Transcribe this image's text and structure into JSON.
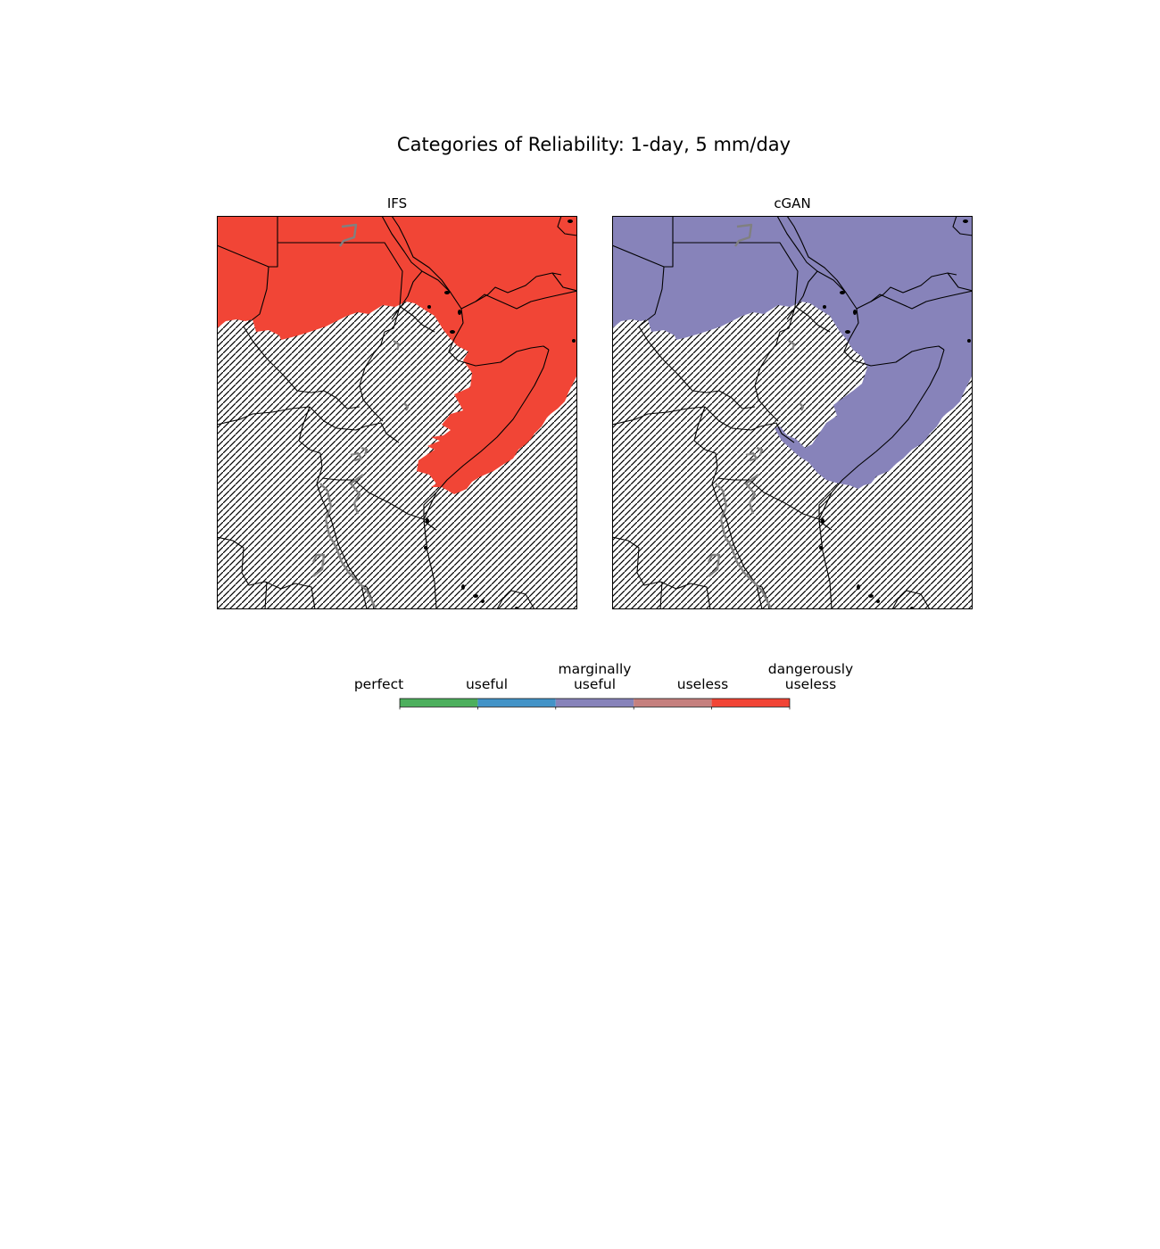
{
  "figure": {
    "title": "Categories of Reliability: 1-day, 5 mm/day"
  },
  "panels": [
    {
      "title": "IFS",
      "fill_category": "dangerously useless",
      "fill_color": "#f14536"
    },
    {
      "title": "cGAN",
      "fill_category": "marginally useful",
      "fill_color": "#8783ba"
    }
  ],
  "legend": {
    "categories": [
      {
        "line1": "",
        "line2": "perfect",
        "color": "#4daf5d"
      },
      {
        "line1": "",
        "line2": "useful",
        "color": "#4393c7"
      },
      {
        "line1": "marginally",
        "line2": "useful",
        "color": "#8783ba"
      },
      {
        "line1": "",
        "line2": "useless",
        "color": "#c5807e"
      },
      {
        "line1": "dangerously",
        "line2": "useless",
        "color": "#f14536"
      }
    ],
    "hatch_meaning": "",
    "hatch_color": "#000000"
  },
  "map_style": {
    "border_color": "#000000",
    "lake_color": "#808080",
    "hatch_background": "#ffffff"
  }
}
